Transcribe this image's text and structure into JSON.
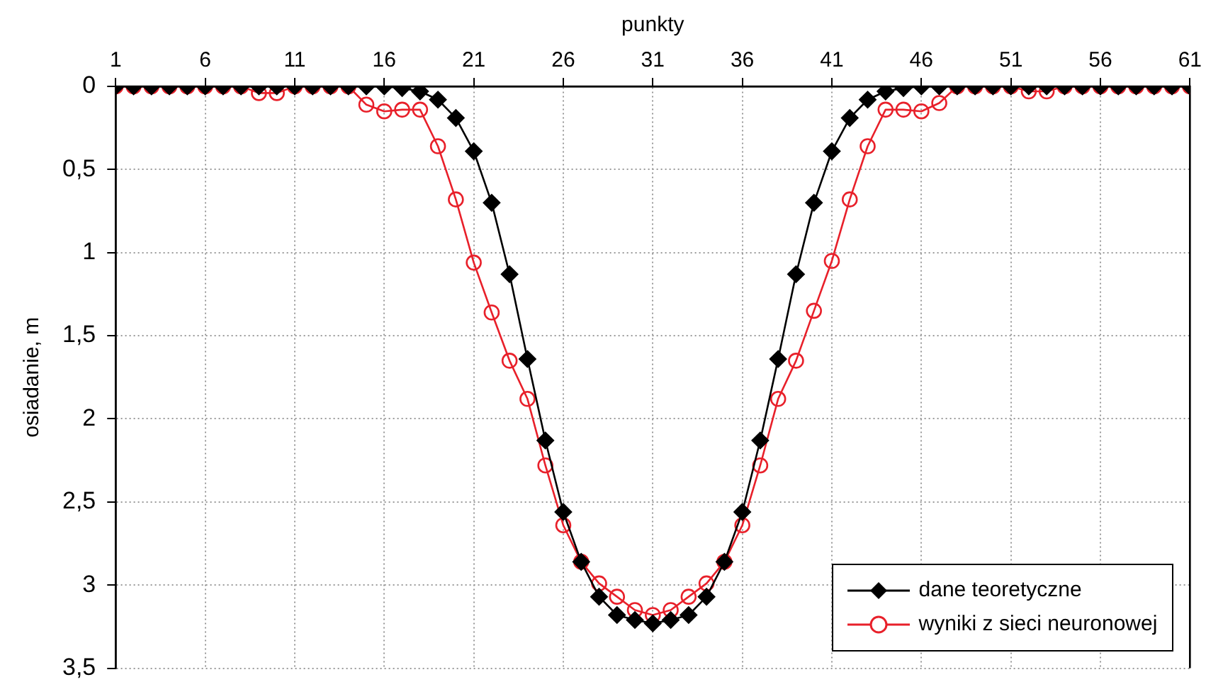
{
  "chart_data": {
    "type": "line",
    "xlabel": "punkty",
    "ylabel": "osiadanie, m",
    "x": [
      1,
      2,
      3,
      4,
      5,
      6,
      7,
      8,
      9,
      10,
      11,
      12,
      13,
      14,
      15,
      16,
      17,
      18,
      19,
      20,
      21,
      22,
      23,
      24,
      25,
      26,
      27,
      28,
      29,
      30,
      31,
      32,
      33,
      34,
      35,
      36,
      37,
      38,
      39,
      40,
      41,
      42,
      43,
      44,
      45,
      46,
      47,
      48,
      49,
      50,
      51,
      52,
      53,
      54,
      55,
      56,
      57,
      58,
      59,
      60,
      61
    ],
    "series": [
      {
        "name": "dane teoretyczne",
        "color": "#000000",
        "marker": "diamond",
        "values": [
          0,
          0,
          0,
          0,
          0,
          0,
          0,
          0,
          0,
          0,
          0,
          0,
          0,
          0,
          0,
          0,
          0.01,
          0.03,
          0.08,
          0.19,
          0.39,
          0.7,
          1.13,
          1.64,
          2.13,
          2.56,
          2.86,
          3.07,
          3.18,
          3.21,
          3.23,
          3.21,
          3.18,
          3.07,
          2.86,
          2.56,
          2.13,
          1.64,
          1.13,
          0.7,
          0.39,
          0.19,
          0.08,
          0.03,
          0.01,
          0,
          0,
          0,
          0,
          0,
          0,
          0,
          0,
          0,
          0,
          0,
          0,
          0,
          0,
          0,
          0
        ]
      },
      {
        "name": "wyniki z sieci neuronowej",
        "color": "#e8202a",
        "marker": "circle",
        "values": [
          0,
          0,
          0,
          0,
          0,
          0,
          0,
          0,
          0.04,
          0.04,
          0,
          0,
          0,
          0,
          0.11,
          0.15,
          0.14,
          0.14,
          0.36,
          0.68,
          1.06,
          1.36,
          1.65,
          1.88,
          2.28,
          2.64,
          2.86,
          2.99,
          3.07,
          3.15,
          3.18,
          3.15,
          3.07,
          2.99,
          2.86,
          2.64,
          2.28,
          1.88,
          1.65,
          1.35,
          1.05,
          0.68,
          0.36,
          0.14,
          0.14,
          0.15,
          0.1,
          0,
          0,
          0,
          0,
          0.03,
          0.03,
          0,
          0,
          0,
          0,
          0,
          0,
          0,
          0
        ]
      }
    ],
    "xlim": [
      1,
      61
    ],
    "xticks": [
      1,
      6,
      11,
      16,
      21,
      26,
      31,
      36,
      41,
      46,
      51,
      56,
      61
    ],
    "ylim": [
      3.5,
      0
    ],
    "yticks": [
      0,
      {
        "value": 0.5,
        "label": "0,5"
      },
      1,
      {
        "value": 1.5,
        "label": "1,5"
      },
      2,
      {
        "value": 2.5,
        "label": "2,5"
      },
      3,
      {
        "value": 3.5,
        "label": "3,5"
      }
    ],
    "grid": true,
    "legend": "bottom right",
    "line_style": "solid"
  }
}
